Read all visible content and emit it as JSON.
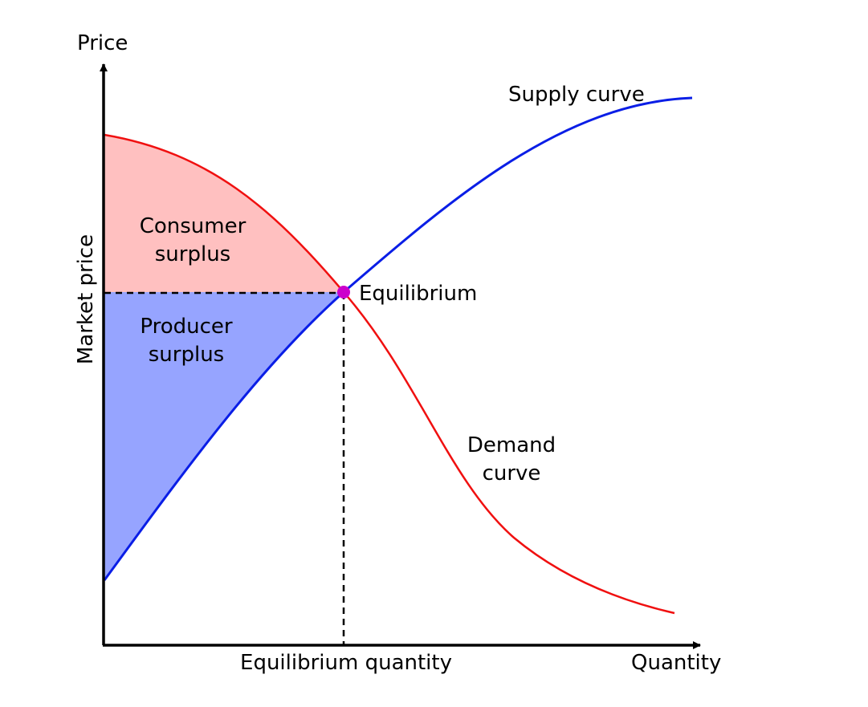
{
  "labels": {
    "y_axis_title": "Price",
    "x_axis_title": "Quantity",
    "y_marker_label": "Market price",
    "x_marker_label": "Equilibrium quantity",
    "supply_curve": "Supply curve",
    "demand_curve_line1": "Demand",
    "demand_curve_line2": "curve",
    "equilibrium": "Equilibrium",
    "consumer_surplus_line1": "Consumer",
    "consumer_surplus_line2": "surplus",
    "producer_surplus_line1": "Producer",
    "producer_surplus_line2": "surplus"
  },
  "colors": {
    "axis": "#000000",
    "supply": "#0a1ee6",
    "demand": "#f01010",
    "consumer_surplus_fill": "#ffc0c0",
    "producer_surplus_fill": "#96a4ff",
    "equilibrium_point": "#cc00cc",
    "guide_line": "#000000"
  }
}
